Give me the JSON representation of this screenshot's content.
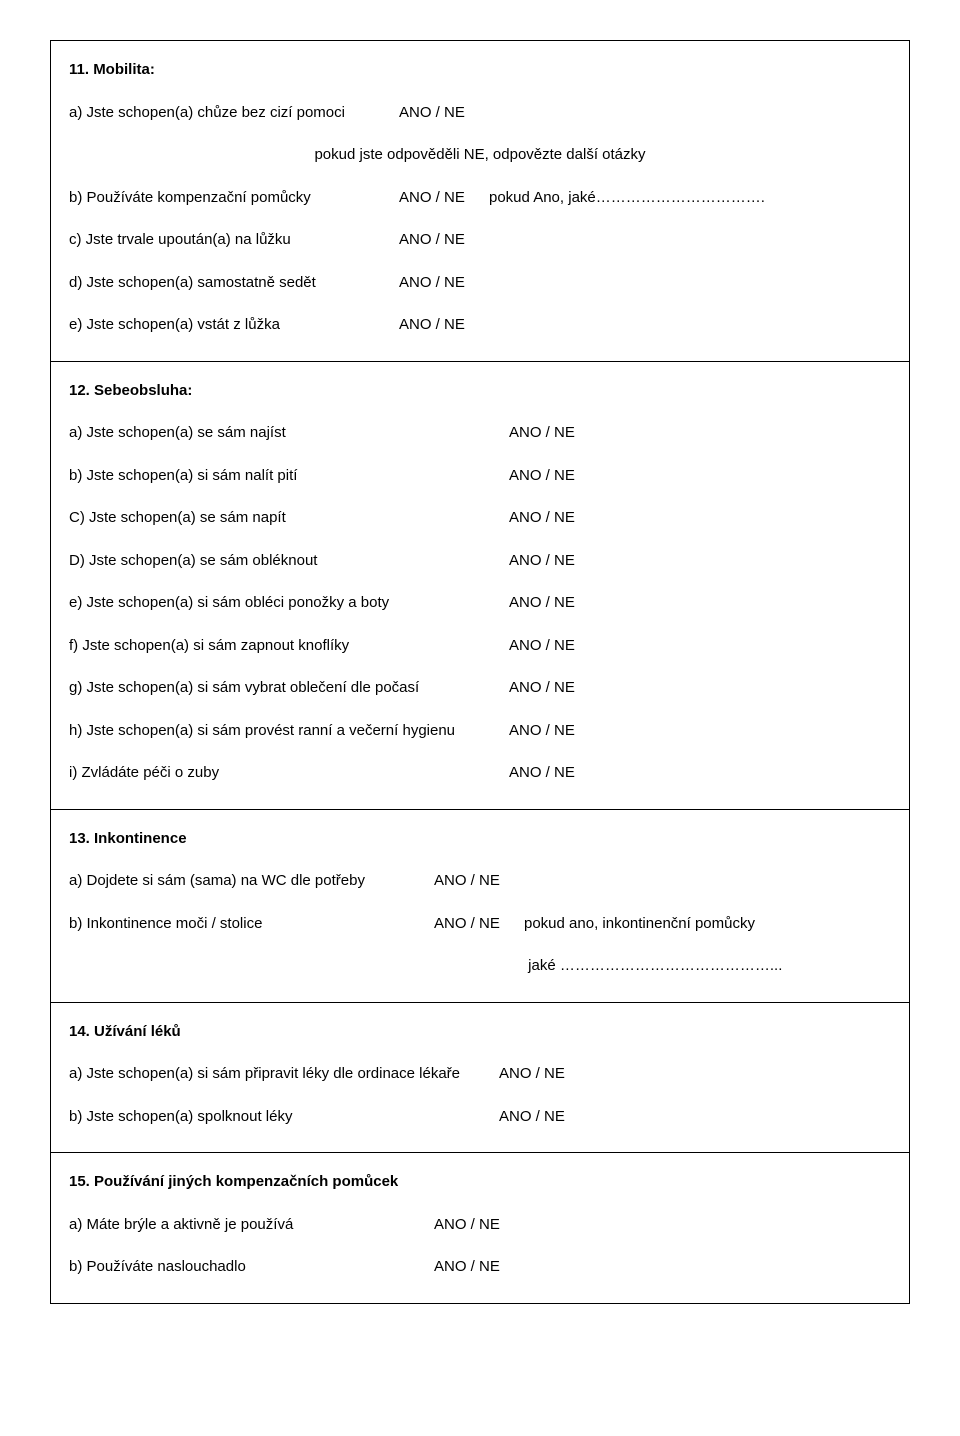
{
  "yesno": "ANO / NE",
  "s11": {
    "heading": "11. Mobilita:",
    "a_label": "a) Jste schopen(a) chůze bez cizí pomoci",
    "note": "pokud jste odpověděli NE, odpovězte další otázky",
    "b_label": "b) Používáte kompenzační pomůcky",
    "b_suffix": "pokud Ano, jaké…………………………….",
    "c_label": "c) Jste trvale upoután(a) na lůžku",
    "d_label": "d) Jste schopen(a) samostatně sedět",
    "e_label": "e) Jste schopen(a) vstát z lůžka"
  },
  "s12": {
    "heading": "12. Sebeobsluha:",
    "a_label": "a) Jste schopen(a) se sám najíst",
    "b_label": "b) Jste schopen(a) si sám nalít pití",
    "c_label": "C) Jste schopen(a) se sám napít",
    "d_label": "D) Jste schopen(a) se sám obléknout",
    "e_label": "e) Jste schopen(a) si sám obléci ponožky a boty",
    "f_label": "f) Jste schopen(a) si sám zapnout knoflíky",
    "g_label": "g) Jste schopen(a) si sám vybrat oblečení dle počasí",
    "h_label": "h) Jste schopen(a) si sám provést ranní a večerní hygienu",
    "i_label": "i) Zvládáte péči o zuby"
  },
  "s13": {
    "heading": "13. Inkontinence",
    "a_label": "a) Dojdete si sám (sama) na WC dle potřeby",
    "b_label": "b) Inkontinence moči / stolice",
    "b_suffix": "pokud ano, inkontinenční pomůcky",
    "jake": " jaké ……………………………………..."
  },
  "s14": {
    "heading": "14. Užívání léků",
    "a_label": "a) Jste schopen(a) si sám připravit léky dle ordinace lékaře",
    "b_label": "b) Jste schopen(a) spolknout léky"
  },
  "s15": {
    "heading": "15. Používání jiných kompenzačních pomůcek",
    "a_label": "a) Máte brýle a aktivně je používá",
    "b_label": "b) Používáte naslouchadlo"
  }
}
